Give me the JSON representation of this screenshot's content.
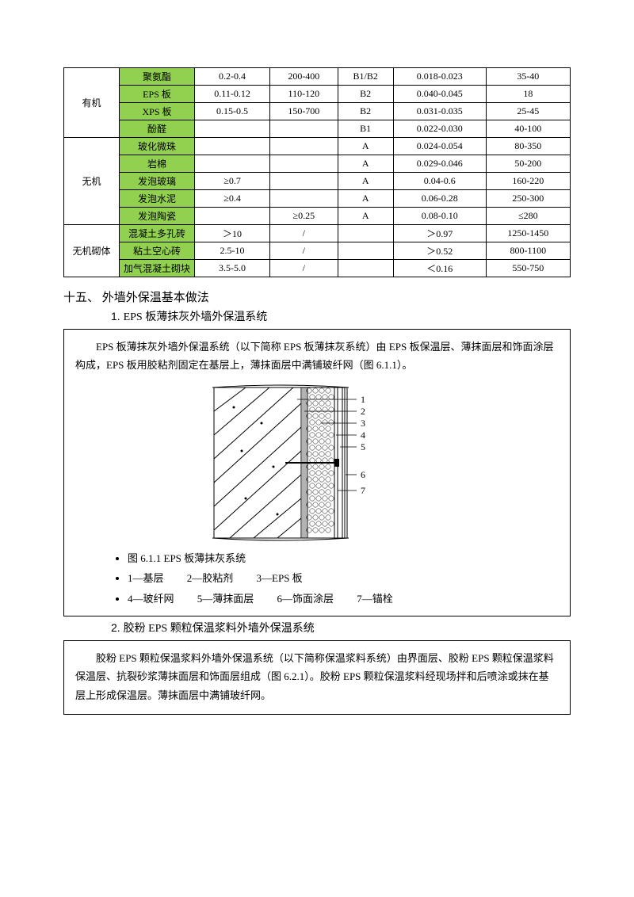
{
  "table": {
    "groups": [
      {
        "category": "有机",
        "rows": [
          {
            "name": "聚氨酯",
            "c1": "0.2-0.4",
            "c2": "200-400",
            "c3": "B1/B2",
            "c4": "0.018-0.023",
            "c5": "35-40"
          },
          {
            "name": "EPS 板",
            "c1": "0.11-0.12",
            "c2": "110-120",
            "c3": "B2",
            "c4": "0.040-0.045",
            "c5": "18"
          },
          {
            "name": "XPS 板",
            "c1": "0.15-0.5",
            "c2": "150-700",
            "c3": "B2",
            "c4": "0.031-0.035",
            "c5": "25-45"
          },
          {
            "name": "酚醛",
            "c1": "",
            "c2": "",
            "c3": "B1",
            "c4": "0.022-0.030",
            "c5": "40-100"
          }
        ]
      },
      {
        "category": "无机",
        "rows": [
          {
            "name": "玻化微珠",
            "c1": "",
            "c2": "",
            "c3": "A",
            "c4": "0.024-0.054",
            "c5": "80-350"
          },
          {
            "name": "岩棉",
            "c1": "",
            "c2": "",
            "c3": "A",
            "c4": "0.029-0.046",
            "c5": "50-200"
          },
          {
            "name": "发泡玻璃",
            "c1": "≥0.7",
            "c2": "",
            "c3": "A",
            "c4": "0.04-0.6",
            "c5": "160-220"
          },
          {
            "name": "发泡水泥",
            "c1": "≥0.4",
            "c2": "",
            "c3": "A",
            "c4": "0.06-0.28",
            "c5": "250-300"
          },
          {
            "name": "发泡陶瓷",
            "c1": "",
            "c2": "≥0.25",
            "c3": "A",
            "c4": "0.08-0.10",
            "c5": "≤280"
          }
        ]
      },
      {
        "category": "无机砌体",
        "rows": [
          {
            "name": "混凝土多孔砖",
            "c1": "＞10",
            "c2": "/",
            "c3": "",
            "c4": "＞0.97",
            "c5": "1250-1450"
          },
          {
            "name": "粘土空心砖",
            "c1": "2.5-10",
            "c2": "/",
            "c3": "",
            "c4": "＞0.52",
            "c5": "800-1100"
          },
          {
            "name": "加气混凝土砌块",
            "c1": "3.5-5.0",
            "c2": "/",
            "c3": "",
            "c4": "＜0.16",
            "c5": "550-750"
          }
        ]
      }
    ]
  },
  "sec15": {
    "heading": "十五、 外墙外保温基本做法",
    "item1_num": "1.",
    "item1_title": "EPS 板薄抹灰外墙外保温系统",
    "box1_desc": "EPS 板薄抹灰外墙外保温系统（以下简称 EPS 板薄抹灰系统）由 EPS 板保温层、薄抹面层和饰面涂层构成，EPS 板用胶粘剂固定在基层上，薄抹面层中满铺玻纤网（图 6.1.1）。",
    "fig_caption": "图 6.1.1   EPS 板薄抹灰系统",
    "legend1": "1—基层",
    "legend2": "2—胶粘剂",
    "legend3": "3—EPS 板",
    "legend4": "4—玻纤网",
    "legend5": "5—薄抹面层",
    "legend6": "6—饰面涂层",
    "legend7": "7—锚栓",
    "labels": [
      "1",
      "2",
      "3",
      "4",
      "5",
      "6",
      "7"
    ],
    "item2_num": "2.",
    "item2_title": "胶粉 EPS 颗粒保温浆料外墙外保温系统",
    "box2_desc": "胶粉 EPS 颗粒保温浆料外墙外保温系统（以下简称保温浆料系统）由界面层、胶粉 EPS 颗粒保温浆料保温层、抗裂砂浆薄抹面层和饰面层组成（图 6.2.1）。胶粉 EPS 颗粒保温浆料经现场拌和后喷涂或抹在基层上形成保温层。薄抹面层中满铺玻纤网。"
  },
  "colors": {
    "name_bg": "#92d050",
    "border": "#000000"
  }
}
